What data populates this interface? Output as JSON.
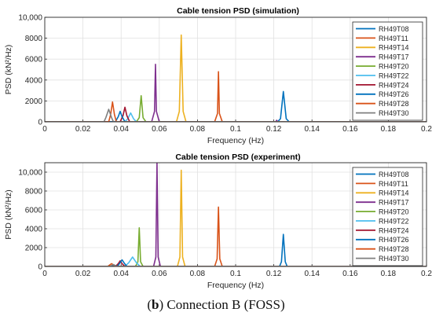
{
  "caption": {
    "prefix": "(",
    "label": "b",
    "rest": ") Connection B (FOSS)"
  },
  "chart_data": [
    {
      "type": "line",
      "title": "Cable tension PSD (simulation)",
      "xlabel": "Frequency (Hz)",
      "ylabel": "PSD (kN²/Hz)",
      "xlim": [
        0,
        0.2
      ],
      "ylim": [
        0,
        10000
      ],
      "xticks": [
        "0",
        "0.02",
        "0.04",
        "0.06",
        "0.08",
        "0.1",
        "0.12",
        "0.14",
        "0.16",
        "0.18",
        "0.2"
      ],
      "yticks": [
        "0",
        "2000",
        "4000",
        "6000",
        "8000",
        "10,000"
      ],
      "grid": true,
      "legend_position": "right",
      "series": [
        {
          "name": "RH49T08",
          "color": "#0072BD",
          "x": [
            0,
            0.122,
            0.1235,
            0.125,
            0.1265,
            0.128,
            0.2
          ],
          "y": [
            5,
            5,
            300,
            2900,
            300,
            5,
            5
          ]
        },
        {
          "name": "RH49T11",
          "color": "#D95319",
          "x": [
            0,
            0.089,
            0.0905,
            0.091,
            0.0915,
            0.093,
            0.2
          ],
          "y": [
            5,
            5,
            800,
            4800,
            800,
            5,
            5
          ]
        },
        {
          "name": "RH49T14",
          "color": "#EDB120",
          "x": [
            0,
            0.069,
            0.0705,
            0.0715,
            0.0725,
            0.074,
            0.2
          ],
          "y": [
            5,
            5,
            1000,
            8300,
            1000,
            5,
            5
          ]
        },
        {
          "name": "RH49T17",
          "color": "#7E2F8E",
          "x": [
            0,
            0.056,
            0.0575,
            0.058,
            0.0585,
            0.06,
            0.121,
            0.1215,
            0.122,
            0.2
          ],
          "y": [
            5,
            5,
            1000,
            5500,
            1000,
            5,
            5,
            150,
            5,
            5
          ]
        },
        {
          "name": "RH49T20",
          "color": "#77AC30",
          "x": [
            0,
            0.048,
            0.0495,
            0.0505,
            0.0515,
            0.053,
            0.2
          ],
          "y": [
            5,
            5,
            400,
            2500,
            400,
            5,
            5
          ]
        },
        {
          "name": "RH49T22",
          "color": "#4DBEEE",
          "x": [
            0,
            0.042,
            0.0435,
            0.045,
            0.0465,
            0.048,
            0.2
          ],
          "y": [
            5,
            5,
            300,
            850,
            300,
            5,
            5
          ]
        },
        {
          "name": "RH49T24",
          "color": "#A2142F",
          "x": [
            0,
            0.0395,
            0.041,
            0.042,
            0.043,
            0.0445,
            0.2
          ],
          "y": [
            5,
            5,
            600,
            1400,
            600,
            5,
            5
          ]
        },
        {
          "name": "RH49T26",
          "color": "#0072BD",
          "x": [
            0,
            0.037,
            0.0385,
            0.0395,
            0.0405,
            0.042,
            0.2
          ],
          "y": [
            5,
            5,
            500,
            1000,
            500,
            5,
            5
          ]
        },
        {
          "name": "RH49T28",
          "color": "#D95319",
          "x": [
            0,
            0.0335,
            0.0345,
            0.0355,
            0.0365,
            0.0375,
            0.2
          ],
          "y": [
            5,
            5,
            700,
            1900,
            700,
            5,
            5
          ]
        },
        {
          "name": "RH49T30",
          "color": "#808080",
          "x": [
            0,
            0.031,
            0.032,
            0.0335,
            0.035,
            0.036,
            0.2
          ],
          "y": [
            5,
            5,
            400,
            1200,
            400,
            5,
            5
          ]
        }
      ]
    },
    {
      "type": "line",
      "title": "Cable tension PSD (experiment)",
      "xlabel": "Frequency (Hz)",
      "ylabel": "PSD (kN²/Hz)",
      "xlim": [
        0,
        0.2
      ],
      "ylim": [
        0,
        11000
      ],
      "xticks": [
        "0",
        "0.02",
        "0.04",
        "0.06",
        "0.08",
        "0.1",
        "0.12",
        "0.14",
        "0.16",
        "0.18",
        "0.2"
      ],
      "yticks": [
        "0",
        "2000",
        "4000",
        "6000",
        "8000",
        "10,000"
      ],
      "grid": true,
      "legend_position": "right",
      "series": [
        {
          "name": "RH49T08",
          "color": "#0072BD",
          "x": [
            0,
            0.123,
            0.124,
            0.125,
            0.126,
            0.127,
            0.2
          ],
          "y": [
            5,
            5,
            500,
            3400,
            500,
            5,
            5
          ]
        },
        {
          "name": "RH49T11",
          "color": "#D95319",
          "x": [
            0,
            0.089,
            0.0903,
            0.091,
            0.0917,
            0.093,
            0.2
          ],
          "y": [
            5,
            5,
            800,
            6300,
            800,
            5,
            5
          ]
        },
        {
          "name": "RH49T14",
          "color": "#EDB120",
          "x": [
            0,
            0.0695,
            0.0708,
            0.0715,
            0.0722,
            0.0735,
            0.2
          ],
          "y": [
            5,
            5,
            1000,
            10200,
            1000,
            5,
            5
          ]
        },
        {
          "name": "RH49T17",
          "color": "#7E2F8E",
          "x": [
            0,
            0.057,
            0.0582,
            0.0588,
            0.0594,
            0.0606,
            0.2
          ],
          "y": [
            5,
            5,
            1000,
            11000,
            1000,
            5,
            5
          ]
        },
        {
          "name": "RH49T20",
          "color": "#77AC30",
          "x": [
            0,
            0.0475,
            0.0488,
            0.0495,
            0.0502,
            0.0515,
            0.2
          ],
          "y": [
            5,
            5,
            500,
            4100,
            500,
            5,
            5
          ]
        },
        {
          "name": "RH49T22",
          "color": "#4DBEEE",
          "x": [
            0,
            0.042,
            0.044,
            0.046,
            0.048,
            0.05,
            0.2
          ],
          "y": [
            5,
            5,
            400,
            1000,
            400,
            5,
            5
          ]
        },
        {
          "name": "RH49T24",
          "color": "#A2142F",
          "x": [
            0,
            0.037,
            0.0385,
            0.0395,
            0.0405,
            0.042,
            0.2
          ],
          "y": [
            5,
            5,
            300,
            600,
            300,
            5,
            5
          ]
        },
        {
          "name": "RH49T26",
          "color": "#0072BD",
          "x": [
            0,
            0.038,
            0.0395,
            0.0405,
            0.0415,
            0.043,
            0.2
          ],
          "y": [
            5,
            5,
            400,
            700,
            400,
            5,
            5
          ]
        },
        {
          "name": "RH49T28",
          "color": "#D95319",
          "x": [
            0,
            0.033,
            0.034,
            0.035,
            0.036,
            0.037,
            0.2
          ],
          "y": [
            5,
            5,
            150,
            300,
            150,
            5,
            5
          ]
        },
        {
          "name": "RH49T30",
          "color": "#808080",
          "x": [
            0,
            0.034,
            0.035,
            0.036,
            0.037,
            0.038,
            0.2
          ],
          "y": [
            5,
            5,
            100,
            200,
            100,
            5,
            5
          ]
        }
      ]
    }
  ]
}
